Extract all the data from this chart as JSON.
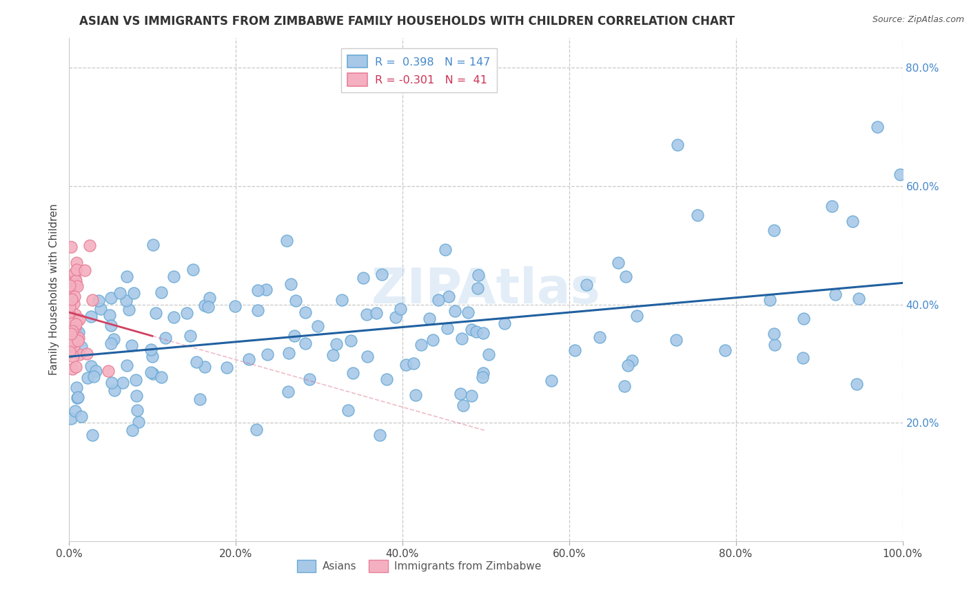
{
  "title": "ASIAN VS IMMIGRANTS FROM ZIMBABWE FAMILY HOUSEHOLDS WITH CHILDREN CORRELATION CHART",
  "source_text": "Source: ZipAtlas.com",
  "ylabel": "Family Households with Children",
  "watermark": "ZIPAtlas",
  "legend_label_blue": "R =  0.398   N = 147",
  "legend_label_pink": "R = -0.301   N =  41",
  "bottom_legend": [
    "Asians",
    "Immigrants from Zimbabwe"
  ],
  "blue_scatter_color": "#a8c8e8",
  "blue_edge_color": "#6aaad4",
  "pink_scatter_color": "#f4b0c0",
  "pink_edge_color": "#e88098",
  "blue_line_color": "#2060a0",
  "pink_line_color": "#d04060",
  "ytick_color": "#4488cc",
  "xlim": [
    0.0,
    1.0
  ],
  "ylim": [
    0.0,
    0.85
  ],
  "xtick_labels": [
    "0.0%",
    "20.0%",
    "40.0%",
    "60.0%",
    "80.0%",
    "100.0%"
  ],
  "xtick_values": [
    0.0,
    0.2,
    0.4,
    0.6,
    0.8,
    1.0
  ],
  "ytick_labels": [
    "20.0%",
    "40.0%",
    "60.0%",
    "80.0%"
  ],
  "ytick_values": [
    0.2,
    0.4,
    0.6,
    0.8
  ],
  "title_fontsize": 12,
  "axis_label_fontsize": 11,
  "tick_fontsize": 11,
  "watermark_fontsize": 52,
  "watermark_color": "#c0d8ee",
  "watermark_alpha": 0.45,
  "background_color": "#ffffff",
  "grid_color": "#bbbbbb",
  "grid_alpha": 0.8,
  "source_fontsize": 9,
  "source_color": "#555555",
  "blue_R": 0.398,
  "blue_N": 147,
  "pink_R": -0.301,
  "pink_N": 41
}
